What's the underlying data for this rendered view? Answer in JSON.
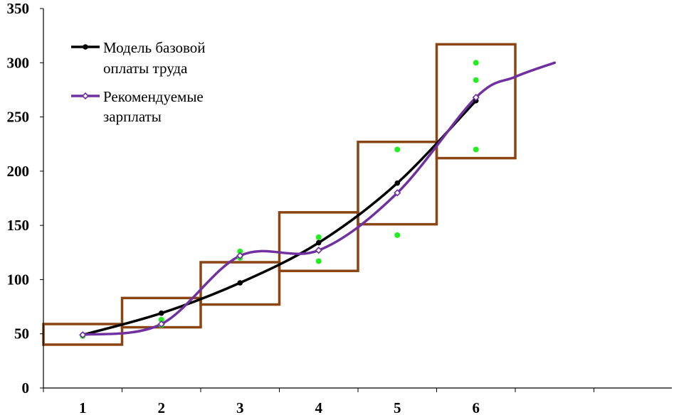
{
  "chart_data": {
    "type": "line",
    "title": "",
    "xlabel": "",
    "ylabel": "",
    "ylim": [
      0,
      350
    ],
    "yticks": [
      0,
      50,
      100,
      150,
      200,
      250,
      300,
      350
    ],
    "xticks": [
      1,
      2,
      3,
      4,
      5,
      6
    ],
    "grid": false,
    "legend_position": "top-left",
    "series": [
      {
        "name": "Модель базовой оплаты труда",
        "legend_lines": [
          "Модель базовой",
          "оплаты труда"
        ],
        "color": "#000000",
        "marker": "filled-circle",
        "x": [
          1,
          2,
          3,
          4,
          5,
          6
        ],
        "y": [
          49,
          69,
          97,
          134,
          189,
          265
        ]
      },
      {
        "name": "Рекомендуемые зарплаты",
        "legend_lines": [
          "Рекомендуемые",
          "зарплаты"
        ],
        "color": "#7030A0",
        "marker": "open-diamond",
        "x": [
          1,
          2,
          3,
          4,
          5,
          6
        ],
        "y": [
          49,
          59,
          122,
          127,
          180,
          268
        ],
        "tail_x": [
          6.5,
          7
        ],
        "tail_y": [
          287,
          300
        ]
      }
    ],
    "scatter_points": {
      "color": "#22EE22",
      "points": [
        {
          "x": 1,
          "y": 48
        },
        {
          "x": 2,
          "y": 58
        },
        {
          "x": 2,
          "y": 63
        },
        {
          "x": 3,
          "y": 120
        },
        {
          "x": 3,
          "y": 126
        },
        {
          "x": 4,
          "y": 117
        },
        {
          "x": 4,
          "y": 139
        },
        {
          "x": 5,
          "y": 141
        },
        {
          "x": 5,
          "y": 220
        },
        {
          "x": 6,
          "y": 220
        },
        {
          "x": 6,
          "y": 284
        },
        {
          "x": 6,
          "y": 300
        }
      ]
    },
    "boxes": {
      "color": "#8B4513",
      "items": [
        {
          "x0": 0.5,
          "x1": 1.5,
          "y0": 40,
          "y1": 59
        },
        {
          "x0": 1.5,
          "x1": 2.5,
          "y0": 56,
          "y1": 83
        },
        {
          "x0": 2.5,
          "x1": 3.5,
          "y0": 77,
          "y1": 116
        },
        {
          "x0": 3.5,
          "x1": 4.5,
          "y0": 108,
          "y1": 162
        },
        {
          "x0": 4.5,
          "x1": 5.5,
          "y0": 151,
          "y1": 227
        },
        {
          "x0": 5.5,
          "x1": 6.5,
          "y0": 212,
          "y1": 317
        }
      ]
    }
  }
}
